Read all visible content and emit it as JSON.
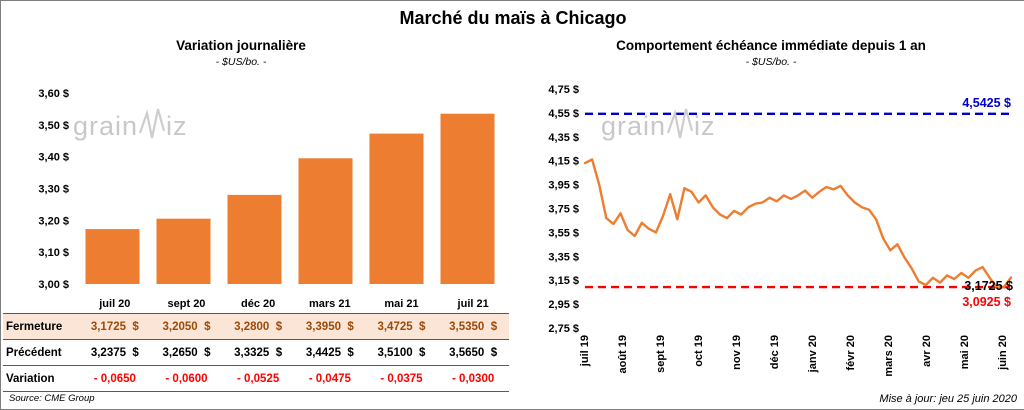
{
  "page": {
    "title": "Marché du maïs à Chicago",
    "source": "Source: CME Group",
    "updated": "Mise à jour: jeu 25 juin 2020"
  },
  "watermark": {
    "part1": "grain",
    "part2": "iz"
  },
  "colors": {
    "orange": "#ED7D31",
    "blue": "#0000CD",
    "red": "#FF0000",
    "close_row_bg": "#FBE5D6",
    "close_row_text": "#9C4A08",
    "watermark_gray": "#C8C8C8"
  },
  "left_panel": {
    "title": "Variation journalière",
    "subtitle": "- $US/bo. -",
    "table": {
      "header": [
        "juil 20",
        "sept 20",
        "déc 20",
        "mars 21",
        "mai 21",
        "juil 21"
      ],
      "rows": [
        {
          "label": "Fermeture",
          "values": [
            "3,1725  $",
            "3,2050  $",
            "3,2800  $",
            "3,3950  $",
            "3,4725  $",
            "3,5350  $"
          ]
        },
        {
          "label": "Précédent",
          "values": [
            "3,2375  $",
            "3,2650  $",
            "3,3325  $",
            "3,4425  $",
            "3,5100  $",
            "3,5650  $"
          ]
        },
        {
          "label": "Variation",
          "values": [
            "- 0,0650",
            "- 0,0600",
            "- 0,0525",
            "- 0,0475",
            "- 0,0375",
            "- 0,0300"
          ]
        }
      ]
    }
  },
  "right_panel": {
    "title": "Comportement échéance immédiate depuis 1 an",
    "subtitle": "- $US/bo. -"
  },
  "chart_data": [
    {
      "type": "bar",
      "title": "Variation journalière",
      "subtitle": "- $US/bo. -",
      "series_label": "Fermeture",
      "categories": [
        "juil 20",
        "sept 20",
        "déc 20",
        "mars 21",
        "mai 21",
        "juil 21"
      ],
      "values": [
        3.1725,
        3.205,
        3.28,
        3.395,
        3.4725,
        3.535
      ],
      "previous_values": [
        3.2375,
        3.265,
        3.3325,
        3.4425,
        3.51,
        3.565
      ],
      "variation_values": [
        -0.065,
        -0.06,
        -0.0525,
        -0.0475,
        -0.0375,
        -0.03
      ],
      "ylim": [
        3.0,
        3.6
      ],
      "ytick_step": 0.1,
      "ytick_labels": [
        "3,00 $",
        "3,10 $",
        "3,20 $",
        "3,30 $",
        "3,40 $",
        "3,50 $",
        "3,60 $"
      ],
      "bar_color": "#ED7D31",
      "grid": false,
      "legend": "none"
    },
    {
      "type": "line",
      "title": "Comportement échéance immédiate depuis 1 an",
      "subtitle": "- $US/bo. -",
      "x_labels": [
        "juil 19",
        "août 19",
        "sept 19",
        "oct 19",
        "nov 19",
        "déc 19",
        "janv 20",
        "févr 20",
        "mars 20",
        "avr 20",
        "mai 20",
        "juin 20"
      ],
      "values": [
        4.13,
        4.16,
        3.95,
        3.67,
        3.62,
        3.71,
        3.57,
        3.52,
        3.63,
        3.58,
        3.55,
        3.69,
        3.87,
        3.66,
        3.92,
        3.89,
        3.8,
        3.86,
        3.76,
        3.7,
        3.67,
        3.73,
        3.7,
        3.76,
        3.79,
        3.8,
        3.84,
        3.81,
        3.86,
        3.83,
        3.86,
        3.9,
        3.84,
        3.89,
        3.93,
        3.91,
        3.94,
        3.86,
        3.8,
        3.76,
        3.74,
        3.66,
        3.5,
        3.4,
        3.45,
        3.34,
        3.25,
        3.14,
        3.11,
        3.17,
        3.13,
        3.19,
        3.16,
        3.21,
        3.17,
        3.23,
        3.26,
        3.17,
        3.09,
        3.0925,
        3.1725
      ],
      "ylim": [
        2.75,
        4.75
      ],
      "ytick_step": 0.2,
      "ytick_labels": [
        "2,75 $",
        "2,95 $",
        "3,15 $",
        "3,35 $",
        "3,55 $",
        "3,75 $",
        "3,95 $",
        "4,15 $",
        "4,35 $",
        "4,55 $",
        "4,75 $"
      ],
      "line_color": "#ED7D31",
      "ref_lines": [
        {
          "value": 4.5425,
          "label": "4,5425 $",
          "color": "#0000CD",
          "style": "dashed",
          "label_position": "above-right"
        },
        {
          "value": 3.0925,
          "label": "3,0925 $",
          "color": "#FF0000",
          "style": "dashed",
          "label_position": "below-right"
        }
      ],
      "end_label": {
        "value": 3.1725,
        "label": "3,1725 $",
        "color": "#000000"
      },
      "grid": false,
      "legend": "none"
    }
  ]
}
